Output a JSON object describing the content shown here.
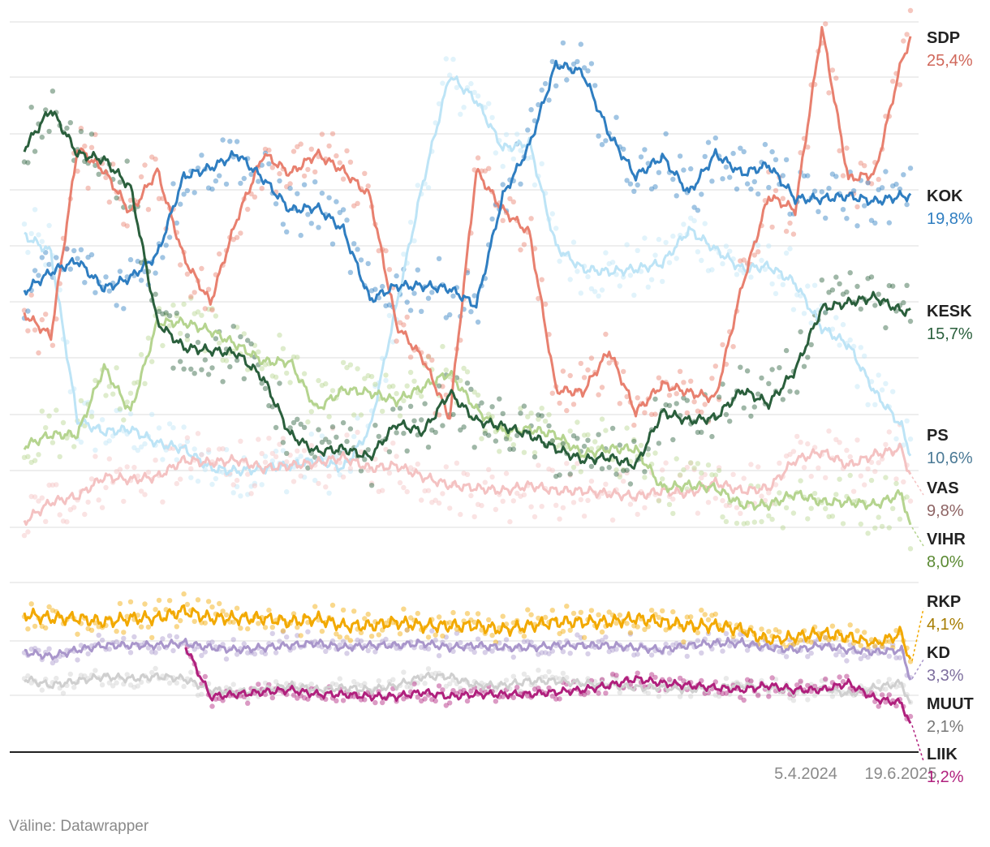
{
  "source": "Väline: Datawrapper",
  "chart_data": {
    "type": "line",
    "title": "",
    "xlabel": "",
    "ylabel": "",
    "x_tick_labels": [
      "5.4.2024",
      "19.6.2025"
    ],
    "ylim": [
      0,
      26
    ],
    "grid": true,
    "x_range": [
      0,
      100
    ],
    "series": [
      {
        "name": "SDP",
        "value_label": "25,4%",
        "color": "#e8806f",
        "label_color": "#d0675a",
        "x": [
          0,
          3,
          6,
          9,
          12,
          15,
          18,
          21,
          24,
          27,
          30,
          33,
          36,
          39,
          42,
          45,
          48,
          51,
          54,
          57,
          60,
          63,
          66,
          69,
          72,
          75,
          78,
          81,
          84,
          87,
          90,
          93,
          96,
          99,
          100
        ],
        "y": [
          15.6,
          14.8,
          21.5,
          20.7,
          19.2,
          20.7,
          17.6,
          16.0,
          19.0,
          21.3,
          20.6,
          21.3,
          20.7,
          19.8,
          15.2,
          14.0,
          11.9,
          20.7,
          19.3,
          18.5,
          12.9,
          12.8,
          14.3,
          12.1,
          13.1,
          12.8,
          12.6,
          16.6,
          19.8,
          19.3,
          25.8,
          20.4,
          20.6,
          24.6,
          25.4
        ]
      },
      {
        "name": "KOK",
        "value_label": "19,8%",
        "color": "#2f7ec1",
        "label_color": "#2f7ec1",
        "x": [
          0,
          3,
          6,
          9,
          12,
          15,
          18,
          21,
          24,
          27,
          30,
          33,
          36,
          39,
          42,
          45,
          48,
          51,
          54,
          57,
          60,
          63,
          66,
          69,
          72,
          75,
          78,
          81,
          84,
          87,
          90,
          93,
          96,
          99,
          100
        ],
        "y": [
          16.4,
          17.1,
          17.5,
          16.5,
          16.9,
          17.7,
          20.5,
          20.8,
          21.3,
          20.4,
          19.3,
          19.4,
          18.6,
          16.1,
          16.6,
          16.6,
          16.5,
          15.9,
          19.8,
          21.6,
          24.5,
          24.2,
          22.0,
          20.5,
          21.2,
          19.9,
          21.3,
          20.6,
          20.9,
          19.7,
          19.7,
          19.8,
          19.6,
          19.8,
          19.8
        ]
      },
      {
        "name": "KESK",
        "value_label": "15,7%",
        "color": "#2a5f3c",
        "label_color": "#2a5f3c",
        "x": [
          0,
          3,
          6,
          9,
          12,
          15,
          18,
          21,
          24,
          27,
          30,
          33,
          36,
          39,
          42,
          45,
          48,
          51,
          54,
          57,
          60,
          63,
          66,
          69,
          72,
          75,
          78,
          81,
          84,
          87,
          90,
          93,
          96,
          99,
          100
        ],
        "y": [
          21.5,
          22.9,
          21.3,
          21.1,
          20.1,
          15.3,
          14.4,
          14.3,
          14.2,
          13.3,
          11.3,
          10.7,
          10.8,
          10.5,
          11.7,
          11.4,
          12.8,
          11.8,
          11.6,
          11.3,
          10.8,
          10.4,
          10.5,
          10.2,
          12.1,
          11.8,
          11.9,
          12.9,
          12.4,
          13.6,
          15.8,
          16.0,
          16.2,
          15.7,
          15.7
        ]
      },
      {
        "name": "PS",
        "value_label": "10,6%",
        "color": "#bde4f6",
        "label_color": "#4b7a96",
        "x": [
          0,
          3,
          6,
          9,
          12,
          15,
          18,
          21,
          24,
          27,
          30,
          33,
          36,
          39,
          42,
          45,
          48,
          51,
          54,
          57,
          60,
          63,
          66,
          69,
          72,
          75,
          78,
          81,
          84,
          87,
          90,
          93,
          96,
          99,
          100
        ],
        "y": [
          18.4,
          17.8,
          11.8,
          11.4,
          11.5,
          11.0,
          10.8,
          10.1,
          10.0,
          10.1,
          10.2,
          10.4,
          10.1,
          11.5,
          15.9,
          20.3,
          24.1,
          23.2,
          21.5,
          21.7,
          18.0,
          17.2,
          17.1,
          17.2,
          17.4,
          18.6,
          17.9,
          17.2,
          17.3,
          16.7,
          15.1,
          14.5,
          12.8,
          11.6,
          10.6
        ]
      },
      {
        "name": "VAS",
        "value_label": "9,8%",
        "color": "#f4c2c2",
        "label_color": "#8e6464",
        "x": [
          0,
          3,
          6,
          9,
          12,
          15,
          18,
          21,
          24,
          27,
          30,
          33,
          36,
          39,
          42,
          45,
          48,
          51,
          54,
          57,
          60,
          63,
          66,
          69,
          72,
          75,
          78,
          81,
          84,
          87,
          90,
          93,
          96,
          99,
          100
        ],
        "y": [
          8.2,
          8.9,
          9.1,
          9.8,
          9.7,
          9.8,
          10.4,
          10.3,
          10.4,
          10.1,
          10.2,
          10.3,
          10.5,
          10.1,
          10.2,
          9.8,
          9.5,
          9.4,
          9.3,
          9.5,
          9.3,
          9.3,
          9.2,
          9.1,
          9.3,
          9.2,
          9.6,
          9.3,
          9.4,
          10.4,
          10.7,
          10.2,
          10.6,
          10.8,
          9.8
        ]
      },
      {
        "name": "VIHR",
        "value_label": "8,0%",
        "color": "#b5d48f",
        "label_color": "#5b8a33",
        "x": [
          0,
          3,
          6,
          9,
          12,
          15,
          18,
          21,
          24,
          27,
          30,
          33,
          36,
          39,
          42,
          45,
          48,
          51,
          54,
          57,
          60,
          63,
          66,
          69,
          72,
          75,
          78,
          81,
          84,
          87,
          90,
          93,
          96,
          99,
          100
        ],
        "y": [
          10.9,
          11.3,
          11.3,
          13.7,
          12.1,
          15.3,
          15.3,
          15.0,
          14.5,
          13.9,
          13.9,
          12.2,
          12.9,
          12.8,
          12.5,
          13.0,
          13.5,
          12.2,
          11.4,
          11.5,
          11.3,
          10.6,
          10.8,
          10.8,
          9.4,
          9.5,
          9.4,
          8.8,
          8.8,
          9.2,
          8.9,
          8.9,
          8.8,
          9.2,
          8.0
        ]
      },
      {
        "name": "RKP",
        "value_label": "4,1%",
        "color": "#f2a900",
        "label_color": "#a67c00",
        "x": [
          0,
          3,
          6,
          9,
          12,
          15,
          18,
          21,
          24,
          27,
          30,
          33,
          36,
          39,
          42,
          45,
          48,
          51,
          54,
          57,
          60,
          63,
          66,
          69,
          72,
          75,
          78,
          81,
          84,
          87,
          90,
          93,
          96,
          99,
          100
        ],
        "y": [
          5.7,
          5.6,
          5.6,
          5.5,
          5.6,
          5.6,
          5.8,
          5.6,
          5.6,
          5.6,
          5.5,
          5.6,
          5.4,
          5.4,
          5.5,
          5.4,
          5.4,
          5.4,
          5.3,
          5.4,
          5.5,
          5.5,
          5.5,
          5.6,
          5.5,
          5.4,
          5.4,
          5.3,
          5.0,
          5.1,
          5.2,
          5.1,
          4.9,
          5.2,
          4.1
        ]
      },
      {
        "name": "KD",
        "value_label": "3,3%",
        "color": "#a996cb",
        "label_color": "#7d6e9e",
        "x": [
          0,
          3,
          6,
          9,
          12,
          15,
          18,
          21,
          24,
          27,
          30,
          33,
          36,
          39,
          42,
          45,
          48,
          51,
          54,
          57,
          60,
          63,
          66,
          69,
          72,
          75,
          78,
          81,
          84,
          87,
          90,
          93,
          96,
          99,
          100
        ],
        "y": [
          4.5,
          4.3,
          4.6,
          4.8,
          4.8,
          4.8,
          4.9,
          4.7,
          4.6,
          4.7,
          4.8,
          4.9,
          4.7,
          4.8,
          4.8,
          4.9,
          4.7,
          4.8,
          4.7,
          4.7,
          4.8,
          4.8,
          4.8,
          4.7,
          4.6,
          4.8,
          4.9,
          4.9,
          4.7,
          4.6,
          4.8,
          4.6,
          4.5,
          4.6,
          3.3
        ]
      },
      {
        "name": "MUUT",
        "value_label": "2,1%",
        "color": "#cfcfcf",
        "label_color": "#777777",
        "x": [
          0,
          3,
          6,
          9,
          12,
          15,
          18,
          21,
          24,
          27,
          30,
          33,
          36,
          39,
          42,
          45,
          48,
          51,
          54,
          57,
          60,
          63,
          66,
          69,
          72,
          75,
          78,
          81,
          84,
          87,
          90,
          93,
          96,
          99,
          100
        ],
        "y": [
          3.3,
          3.0,
          3.2,
          3.4,
          3.3,
          3.4,
          3.3,
          2.8,
          2.7,
          2.8,
          3.0,
          2.8,
          2.9,
          2.8,
          3.0,
          3.4,
          3.4,
          3.0,
          3.0,
          3.2,
          3.2,
          3.1,
          3.0,
          2.9,
          2.9,
          2.8,
          2.9,
          3.0,
          2.9,
          2.7,
          2.9,
          2.6,
          2.9,
          3.1,
          2.1
        ]
      },
      {
        "name": "LIIK",
        "value_label": "1,2%",
        "color": "#b0207d",
        "label_color": "#b0207d",
        "x": [
          0,
          3,
          6,
          9,
          12,
          15,
          18,
          21,
          24,
          27,
          30,
          33,
          36,
          39,
          42,
          45,
          48,
          51,
          54,
          57,
          60,
          63,
          66,
          69,
          72,
          75,
          78,
          81,
          84,
          87,
          90,
          93,
          96,
          99,
          100
        ],
        "y": [
          null,
          null,
          null,
          null,
          null,
          null,
          4.9,
          2.5,
          2.6,
          2.7,
          2.8,
          2.6,
          2.6,
          2.5,
          2.5,
          2.7,
          2.5,
          2.6,
          2.6,
          2.6,
          2.7,
          2.8,
          3.0,
          3.3,
          3.1,
          3.0,
          2.9,
          2.8,
          3.0,
          2.8,
          2.8,
          3.1,
          2.4,
          2.2,
          1.2
        ]
      }
    ]
  }
}
